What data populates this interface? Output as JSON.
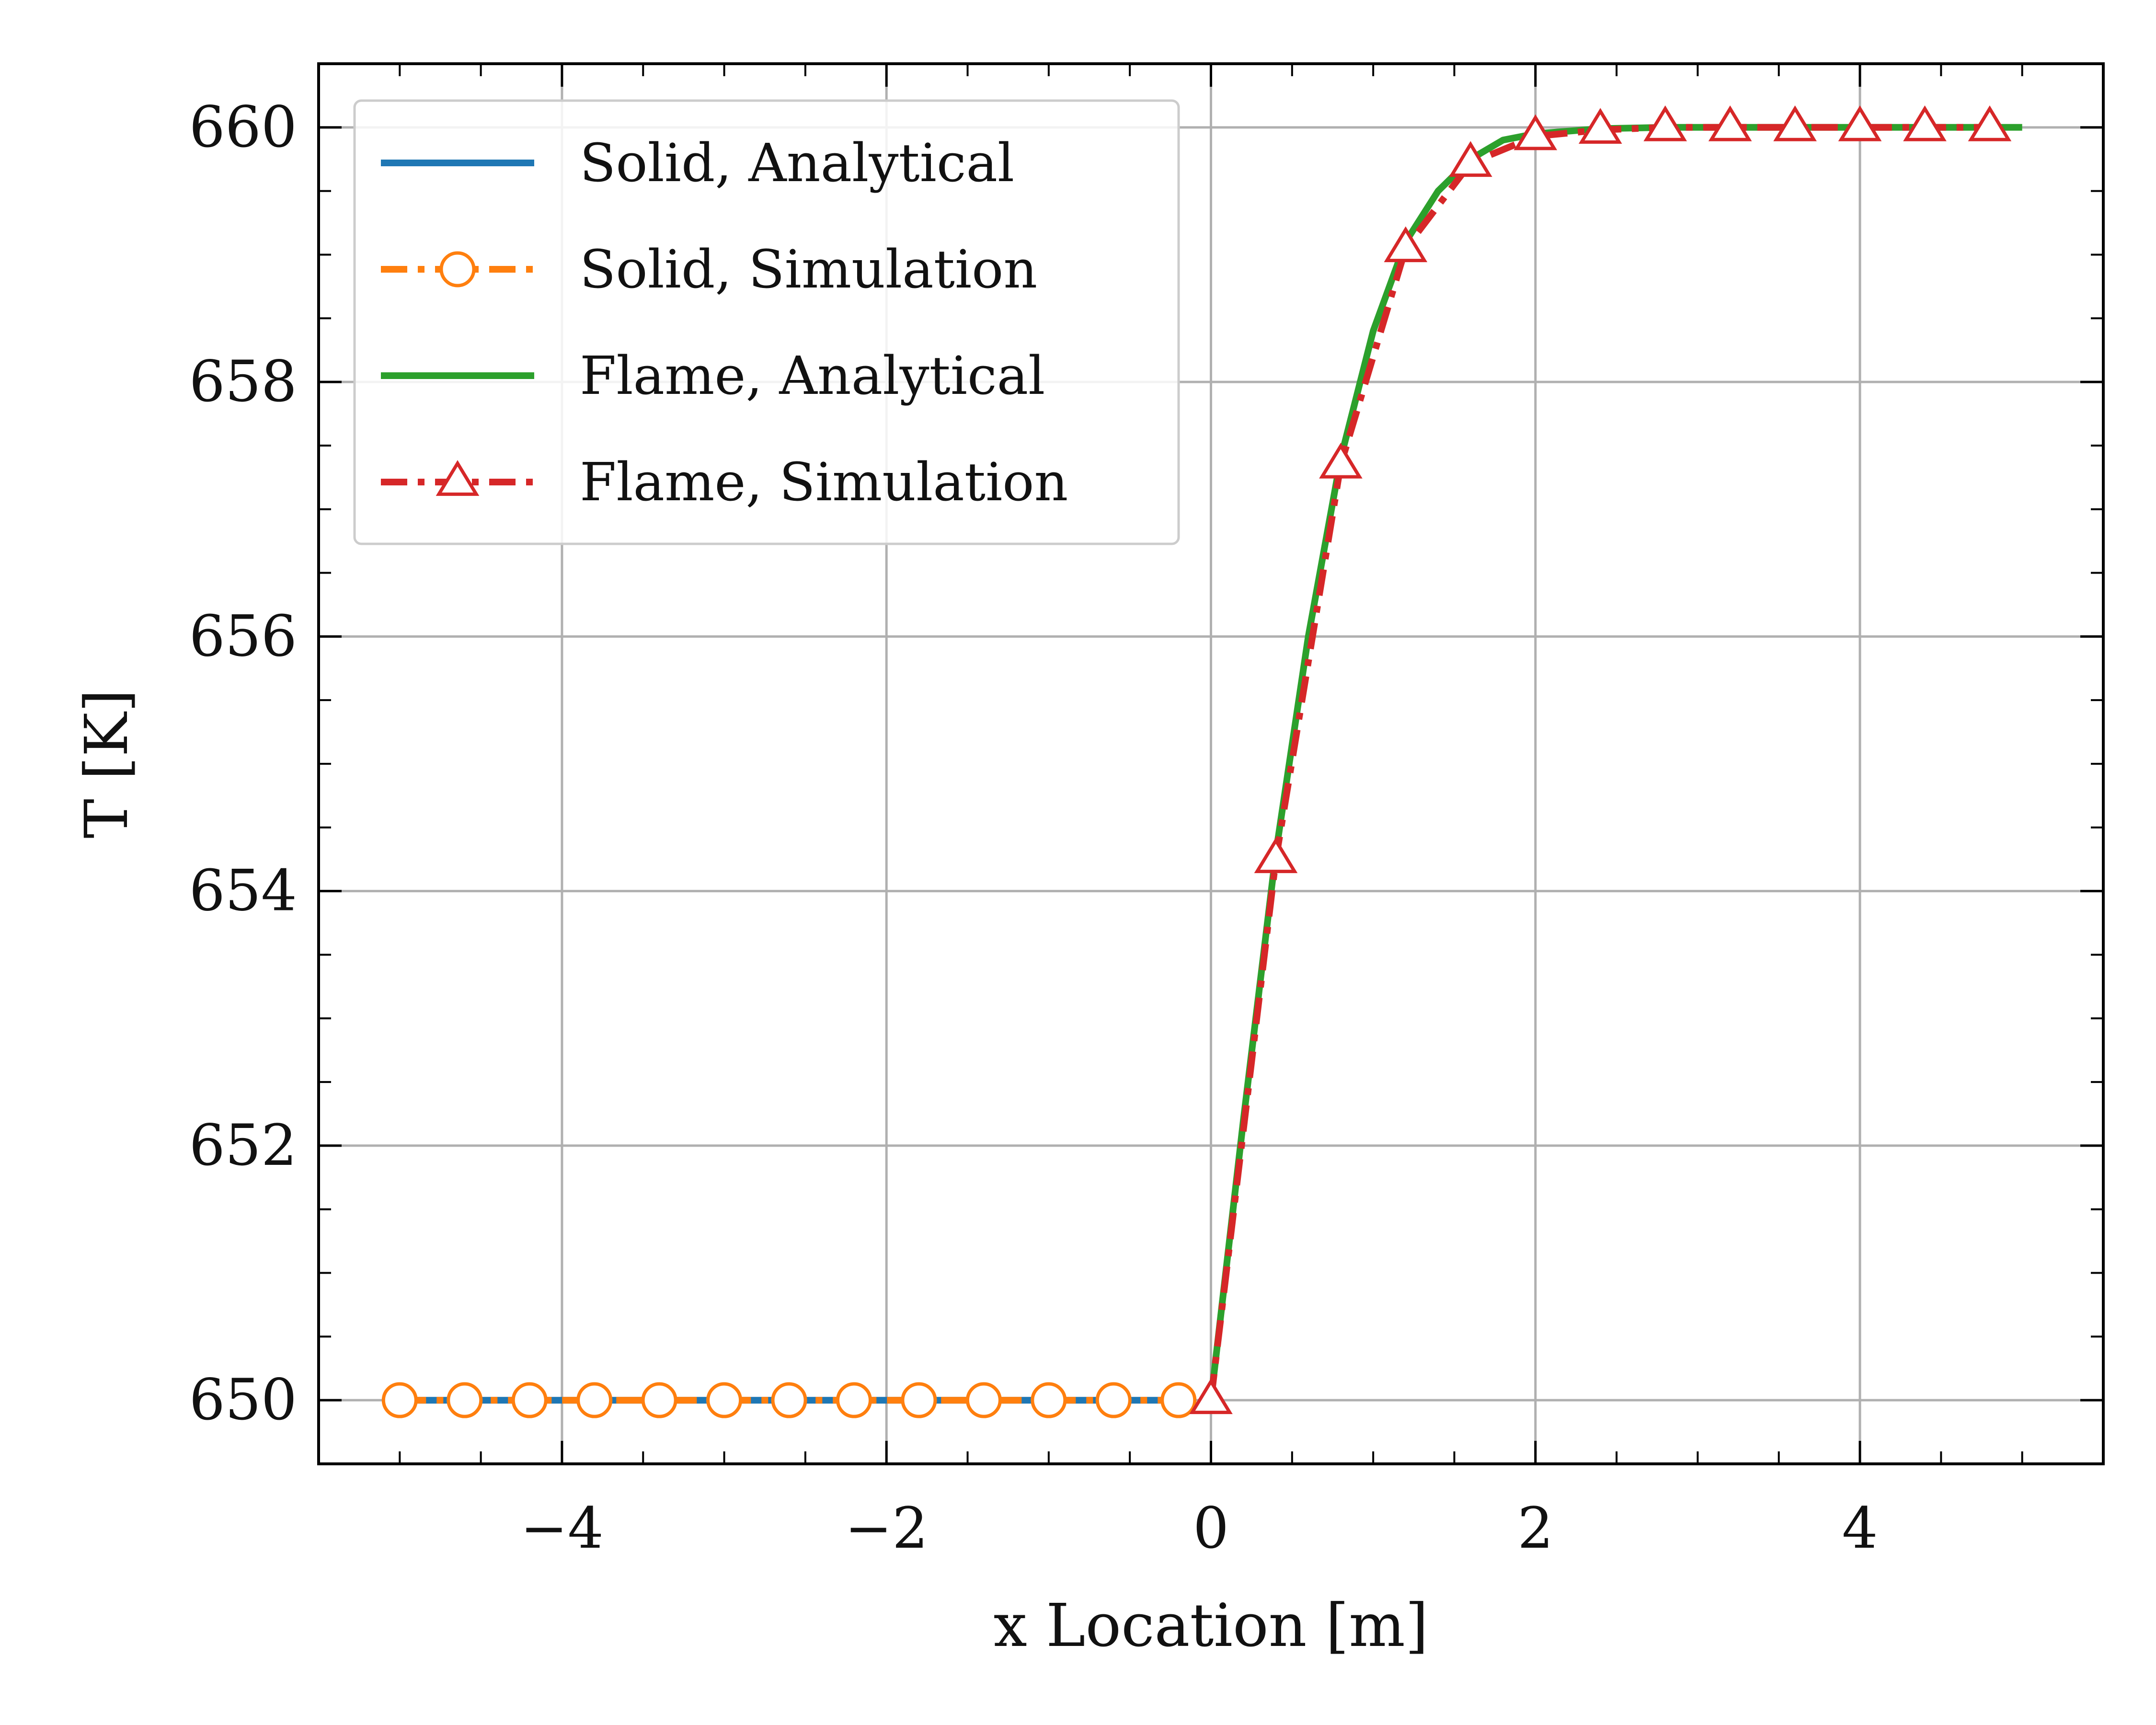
{
  "chart_data": {
    "type": "line",
    "title": "",
    "xlabel": "x Location [m]",
    "ylabel": "T [K]",
    "xlim": [
      -5.5,
      5.5
    ],
    "ylim": [
      649.5,
      660.5
    ],
    "xticks": [
      -4,
      -2,
      0,
      2,
      4
    ],
    "xtick_labels": [
      "−4",
      "−2",
      "0",
      "2",
      "4"
    ],
    "yticks": [
      650,
      652,
      654,
      656,
      658,
      660
    ],
    "ytick_labels": [
      "650",
      "652",
      "654",
      "656",
      "658",
      "660"
    ],
    "grid": true,
    "legend_position": "top-left",
    "series": [
      {
        "name": "Solid, Analytical",
        "color": "#1f77b4",
        "style": "solid",
        "marker": "none",
        "x": [
          -5.0,
          -0.1
        ],
        "y": [
          650.0,
          650.0
        ]
      },
      {
        "name": "Solid, Simulation",
        "color": "#ff7f0e",
        "style": "dash-dot",
        "marker": "circle",
        "x": [
          -5.0,
          -4.6,
          -4.2,
          -3.8,
          -3.4,
          -3.0,
          -2.6,
          -2.2,
          -1.8,
          -1.4,
          -1.0,
          -0.6,
          -0.2
        ],
        "y": [
          650,
          650,
          650,
          650,
          650,
          650,
          650,
          650,
          650,
          650,
          650,
          650,
          650
        ]
      },
      {
        "name": "Flame, Analytical",
        "color": "#2ca02c",
        "style": "solid",
        "marker": "none",
        "x": [
          0.0,
          0.2,
          0.4,
          0.6,
          0.8,
          1.0,
          1.2,
          1.4,
          1.6,
          1.8,
          2.0,
          2.4,
          2.8,
          3.2,
          3.6,
          4.0,
          4.4,
          4.8,
          5.0
        ],
        "y": [
          650.0,
          652.2,
          654.3,
          656.0,
          657.4,
          658.4,
          659.1,
          659.5,
          659.75,
          659.9,
          659.95,
          659.99,
          660.0,
          660.0,
          660.0,
          660.0,
          660.0,
          660.0,
          660.0
        ]
      },
      {
        "name": "Flame, Simulation",
        "color": "#d62728",
        "style": "dash-dot",
        "marker": "triangle",
        "x": [
          0.0,
          0.4,
          0.8,
          1.2,
          1.6,
          2.0,
          2.4,
          2.8,
          3.2,
          3.6,
          4.0,
          4.4,
          4.8
        ],
        "y": [
          650.0,
          654.25,
          657.35,
          659.05,
          659.72,
          659.93,
          659.98,
          660.0,
          660.0,
          660.0,
          660.0,
          660.0,
          660.0
        ]
      }
    ]
  }
}
